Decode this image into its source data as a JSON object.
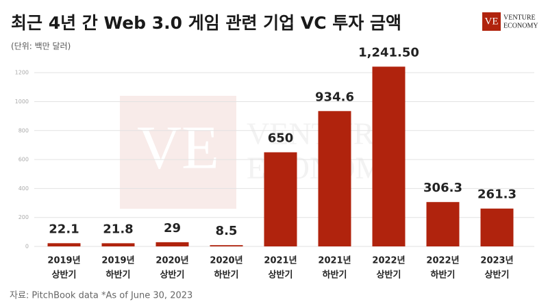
{
  "chart_data": {
    "type": "bar",
    "title": "최근 4년 간 Web 3.0 게임 관련 기업 VC 투자 금액",
    "subtitle": "(단위: 백만 달러)",
    "source": "자료: PitchBook data *As of June 30, 2023",
    "categories": [
      [
        "2019년",
        "상반기"
      ],
      [
        "2019년",
        "하반기"
      ],
      [
        "2020년",
        "상반기"
      ],
      [
        "2020년",
        "하반기"
      ],
      [
        "2021년",
        "상반기"
      ],
      [
        "2021년",
        "하반기"
      ],
      [
        "2022년",
        "상반기"
      ],
      [
        "2022년",
        "하반기"
      ],
      [
        "2023년",
        "상반기"
      ]
    ],
    "values": [
      22.1,
      21.8,
      29,
      8.5,
      650,
      934.6,
      1241.5,
      306.3,
      261.3
    ],
    "value_labels": [
      "22.1",
      "21.8",
      "29",
      "8.5",
      "650",
      "934.6",
      "1,241.50",
      "306.3",
      "261.3"
    ],
    "color": "#b0230d",
    "ylim": [
      0,
      1300
    ],
    "yticks": [
      0,
      200,
      400,
      600,
      800,
      1000,
      1200
    ],
    "grid": true
  },
  "logo": {
    "mark": "VE",
    "line1": "VENTURE",
    "line2": "ECONOMY"
  }
}
